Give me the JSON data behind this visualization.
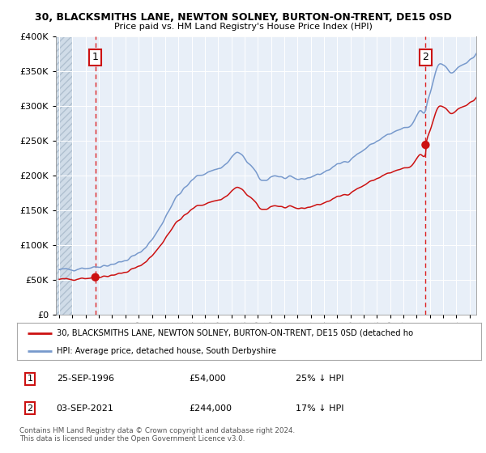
{
  "title1": "30, BLACKSMITHS LANE, NEWTON SOLNEY, BURTON-ON-TRENT, DE15 0SD",
  "title2": "Price paid vs. HM Land Registry's House Price Index (HPI)",
  "legend_line1": "30, BLACKSMITHS LANE, NEWTON SOLNEY, BURTON-ON-TRENT, DE15 0SD (detached ho",
  "legend_line2": "HPI: Average price, detached house, South Derbyshire",
  "annotation1_label": "1",
  "annotation1_date": "25-SEP-1996",
  "annotation1_price": "£54,000",
  "annotation1_hpi": "25% ↓ HPI",
  "annotation2_label": "2",
  "annotation2_date": "03-SEP-2021",
  "annotation2_price": "£244,000",
  "annotation2_hpi": "17% ↓ HPI",
  "footnote1": "Contains HM Land Registry data © Crown copyright and database right 2024.",
  "footnote2": "This data is licensed under the Open Government Licence v3.0.",
  "sale1_year": 1996.73,
  "sale1_price": 54000,
  "sale2_year": 2021.67,
  "sale2_price": 244000,
  "hpi_color": "#7799cc",
  "property_color": "#cc1111",
  "vline_color": "#dd2222",
  "plot_bg_color": "#e8eff8",
  "hatch_bg_color": "#d0dce8",
  "ylim": [
    0,
    400000
  ],
  "xlim_start": 1993.75,
  "xlim_end": 2025.5,
  "start_year": 1994,
  "end_year": 2025
}
